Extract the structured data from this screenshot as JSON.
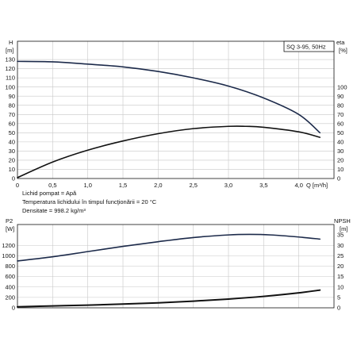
{
  "chart_data": [
    {
      "type": "line",
      "title": "",
      "legend_box": "SQ 3-95, 50Hz",
      "xlabel": "Q [m³/h]",
      "x_ticks": [
        "0",
        "0,5",
        "1,0",
        "1,5",
        "2,0",
        "2,5",
        "3,0",
        "3,5",
        "4,0"
      ],
      "xlim": [
        0,
        4.5
      ],
      "ylabel_left_name": "H",
      "ylabel_left_unit": "[m]",
      "ylim_left": [
        0,
        150
      ],
      "y_left_ticks": [
        "0",
        "10",
        "20",
        "30",
        "40",
        "50",
        "60",
        "70",
        "80",
        "90",
        "100",
        "110",
        "120",
        "130"
      ],
      "ylabel_right_name": "eta",
      "ylabel_right_unit": "[%]",
      "ylim_right": [
        0,
        150
      ],
      "y_right_ticks": [
        "0",
        "10",
        "20",
        "30",
        "40",
        "50",
        "60",
        "70",
        "80",
        "90",
        "100"
      ],
      "grid": true,
      "series": [
        {
          "name": "",
          "axis": "left",
          "color": "#1c2a4a",
          "x": [
            0,
            0.5,
            1.0,
            1.5,
            2.0,
            2.5,
            3.0,
            3.5,
            4.0,
            4.3
          ],
          "y": [
            128,
            127.5,
            125,
            122,
            117,
            110,
            101,
            88,
            70,
            50
          ]
        },
        {
          "name": "",
          "axis": "right",
          "color": "#111111",
          "x": [
            0,
            0.5,
            1.0,
            1.5,
            2.0,
            2.5,
            3.0,
            3.25,
            3.5,
            4.0,
            4.3
          ],
          "y": [
            1,
            18,
            31,
            41,
            49,
            54.5,
            57,
            57,
            56,
            51,
            45
          ]
        }
      ]
    },
    {
      "type": "line",
      "title": "",
      "xlabel": "",
      "xlim": [
        0,
        4.5
      ],
      "ylabel_left_name": "P2",
      "ylabel_left_unit": "[W]",
      "ylim_left": [
        0,
        1600
      ],
      "y_left_ticks": [
        "0",
        "200",
        "400",
        "600",
        "800",
        "1000",
        "1200"
      ],
      "ylabel_right_name": "NPSH",
      "ylabel_right_unit": "[m]",
      "ylim_right": [
        0,
        40
      ],
      "y_right_ticks": [
        "0",
        "5",
        "10",
        "15",
        "20",
        "25",
        "30",
        "35"
      ],
      "grid": true,
      "series": [
        {
          "name": "",
          "axis": "left",
          "color": "#1c2a4a",
          "x": [
            0,
            0.5,
            1.0,
            1.5,
            2.0,
            2.5,
            3.0,
            3.3,
            3.6,
            4.0,
            4.3
          ],
          "y": [
            900,
            980,
            1080,
            1180,
            1270,
            1350,
            1400,
            1410,
            1400,
            1360,
            1320
          ]
        },
        {
          "name": "",
          "axis": "right",
          "color": "#111111",
          "x": [
            0,
            0.5,
            1.0,
            1.5,
            2.0,
            2.5,
            3.0,
            3.5,
            4.0,
            4.3
          ],
          "y": [
            0.5,
            0.9,
            1.3,
            1.8,
            2.4,
            3.2,
            4.2,
            5.5,
            7.2,
            8.5
          ]
        }
      ]
    }
  ],
  "notes": {
    "line1": "Lichid pompat = Apă",
    "line2": "Temperatura lichidului în timpul funcţionării = 20 °C",
    "line3": "Densitate = 998.2 kg/m³"
  }
}
